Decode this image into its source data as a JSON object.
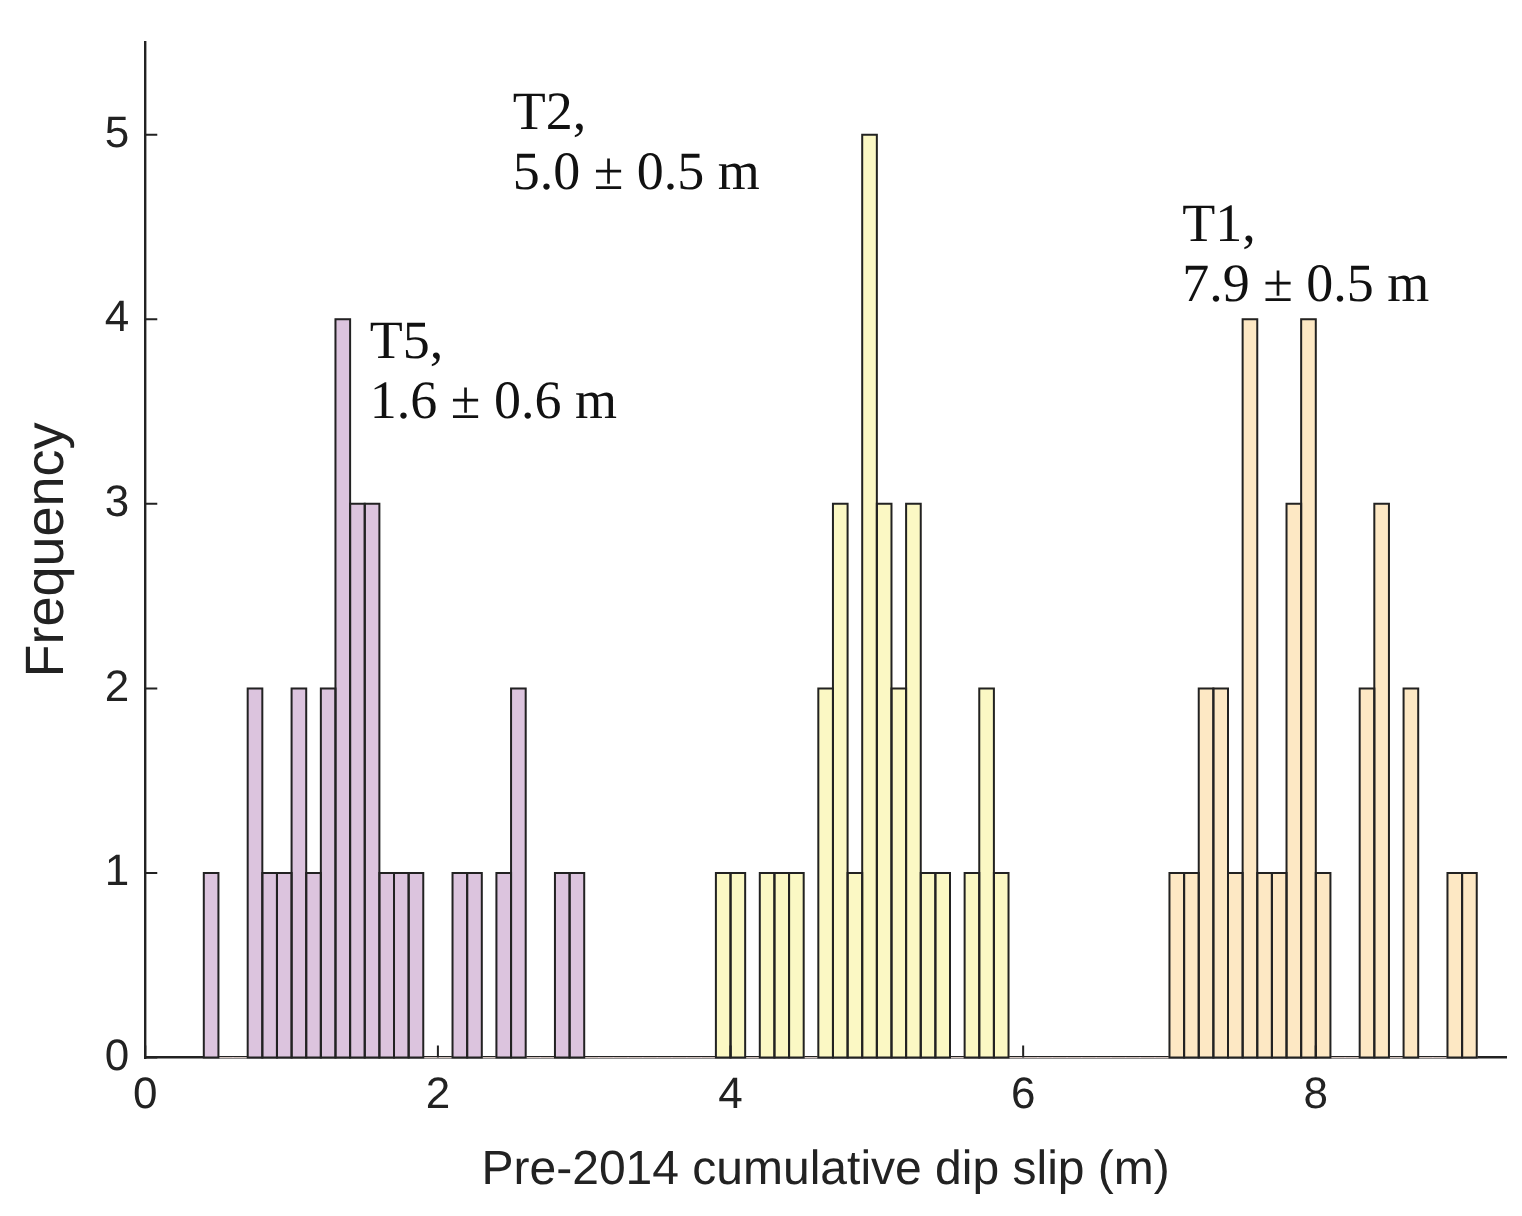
{
  "chart_data": {
    "type": "histogram",
    "xlabel": "Pre-2014 cumulative dip slip (m)",
    "ylabel": "Frequency",
    "xlim": [
      0,
      9.3
    ],
    "xticks": [
      0,
      2,
      4,
      6,
      8
    ],
    "ylim": [
      0,
      5.5
    ],
    "yticks": [
      0,
      1,
      2,
      3,
      4,
      5
    ],
    "grid": false,
    "legend": false,
    "bins": [
      0.4,
      0.5,
      0.6,
      0.7,
      0.8,
      0.9,
      1.0,
      1.1,
      1.2,
      1.3,
      1.4,
      1.5,
      1.6,
      1.7,
      1.8,
      1.9,
      2.0,
      2.1,
      2.2,
      2.3,
      2.4,
      2.5,
      2.6,
      2.7,
      2.8,
      2.9,
      3.0,
      3.1,
      3.2,
      3.3,
      3.4,
      3.5,
      3.6,
      3.7,
      3.8,
      3.9,
      4.0,
      4.1,
      4.2,
      4.3,
      4.4,
      4.5,
      4.6,
      4.7,
      4.8,
      4.9,
      5.0,
      5.1,
      5.2,
      5.3,
      5.4,
      5.5,
      5.6,
      5.7,
      5.8,
      5.9,
      6.0,
      6.1,
      6.2,
      6.3,
      6.4,
      6.5,
      6.6,
      6.7,
      6.8,
      6.9,
      7.0,
      7.1,
      7.2,
      7.3,
      7.4,
      7.5,
      7.6,
      7.7,
      7.8,
      7.9,
      8.0,
      8.1,
      8.2,
      8.3,
      8.4,
      8.5,
      8.6,
      8.7,
      8.8,
      8.9,
      9.0,
      9.1
    ],
    "series": [
      {
        "color": "#dcc4de",
        "values": [
          1,
          0,
          0,
          2,
          1,
          1,
          2,
          1,
          2,
          4,
          3,
          3,
          1,
          1,
          1,
          0,
          0,
          1,
          1,
          0,
          1,
          2,
          0,
          0,
          1,
          1,
          0,
          0,
          0,
          0,
          0,
          0,
          0,
          0,
          0,
          0,
          0,
          0,
          0,
          0,
          0,
          0,
          0,
          0,
          0,
          0,
          0,
          0,
          0,
          0,
          0,
          0,
          0,
          0,
          0,
          0,
          0,
          0,
          0,
          0,
          0,
          0,
          0,
          0,
          0,
          0,
          0,
          0,
          0,
          0,
          0,
          0,
          0,
          0,
          0,
          0,
          0,
          0,
          0,
          0,
          0,
          0,
          0,
          0,
          0,
          0,
          0
        ]
      },
      {
        "color": "#fbf8c4",
        "values": [
          0,
          0,
          0,
          0,
          0,
          0,
          0,
          0,
          0,
          0,
          0,
          0,
          0,
          0,
          0,
          0,
          0,
          0,
          0,
          0,
          0,
          0,
          0,
          0,
          0,
          0,
          0,
          0,
          0,
          0,
          0,
          0,
          0,
          0,
          0,
          1,
          1,
          0,
          1,
          1,
          1,
          0,
          2,
          3,
          1,
          5,
          3,
          2,
          3,
          1,
          1,
          0,
          1,
          2,
          1,
          0,
          0,
          0,
          0,
          0,
          0,
          0,
          0,
          0,
          0,
          0,
          0,
          0,
          0,
          0,
          0,
          0,
          0,
          0,
          0,
          0,
          0,
          0,
          0,
          0,
          0,
          0,
          0,
          0,
          0,
          0,
          0
        ]
      },
      {
        "color": "#fde8c4",
        "values": [
          0,
          0,
          0,
          0,
          0,
          0,
          0,
          0,
          0,
          0,
          0,
          0,
          0,
          0,
          0,
          0,
          0,
          0,
          0,
          0,
          0,
          0,
          0,
          0,
          0,
          0,
          0,
          0,
          0,
          0,
          0,
          0,
          0,
          0,
          0,
          0,
          0,
          0,
          0,
          0,
          0,
          0,
          0,
          0,
          0,
          0,
          0,
          0,
          0,
          0,
          0,
          0,
          0,
          0,
          0,
          0,
          0,
          0,
          0,
          0,
          0,
          0,
          0,
          0,
          0,
          0,
          1,
          1,
          2,
          2,
          1,
          4,
          1,
          1,
          3,
          4,
          1,
          0,
          0,
          2,
          3,
          0,
          2,
          0,
          0,
          1,
          1
        ]
      }
    ],
    "annotations": [
      "T5,\n1.6 ± 0.6 m",
      "T2,\n5.0 ± 0.5 m",
      "T1,\n7.9 ± 0.5 m"
    ]
  }
}
